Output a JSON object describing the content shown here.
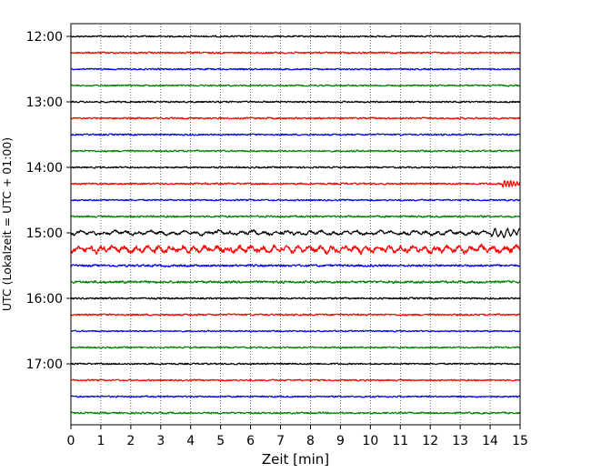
{
  "chart_data": {
    "type": "line",
    "title": "",
    "xlabel": "Zeit  [min]",
    "ylabel": "UTC (Lokalzeit = UTC + 01:00)",
    "xlim": [
      0,
      15
    ],
    "x_ticks": [
      "0",
      "1",
      "2",
      "3",
      "4",
      "5",
      "6",
      "7",
      "8",
      "9",
      "10",
      "11",
      "12",
      "13",
      "14",
      "15"
    ],
    "y_tick_labels": [
      "12:00",
      "13:00",
      "14:00",
      "15:00",
      "16:00",
      "17:00"
    ],
    "grid": "vertical dotted at each minute",
    "legend": "none",
    "trace_interval_minutes": 15,
    "series_colors": [
      "#000000",
      "#ff0000",
      "#0000ff",
      "#008000"
    ],
    "traces": [
      {
        "start": "12:00",
        "color": "#000000",
        "amplitude": 1.0
      },
      {
        "start": "12:15",
        "color": "#ff0000",
        "amplitude": 1.1
      },
      {
        "start": "12:30",
        "color": "#0000ff",
        "amplitude": 1.0
      },
      {
        "start": "12:45",
        "color": "#008000",
        "amplitude": 1.0
      },
      {
        "start": "13:00",
        "color": "#000000",
        "amplitude": 1.0
      },
      {
        "start": "13:15",
        "color": "#ff0000",
        "amplitude": 1.1
      },
      {
        "start": "13:30",
        "color": "#0000ff",
        "amplitude": 1.0
      },
      {
        "start": "13:45",
        "color": "#008000",
        "amplitude": 1.1
      },
      {
        "start": "14:00",
        "color": "#000000",
        "amplitude": 1.0
      },
      {
        "start": "14:15",
        "color": "#ff0000",
        "amplitude": 1.1,
        "event_end": true
      },
      {
        "start": "14:30",
        "color": "#0000ff",
        "amplitude": 1.0
      },
      {
        "start": "14:45",
        "color": "#008000",
        "amplitude": 1.2
      },
      {
        "start": "15:00",
        "color": "#000000",
        "amplitude": 1.6,
        "long_period": true
      },
      {
        "start": "15:15",
        "color": "#ff0000",
        "amplitude": 3.0,
        "long_period": true
      },
      {
        "start": "15:30",
        "color": "#0000ff",
        "amplitude": 1.4
      },
      {
        "start": "15:45",
        "color": "#008000",
        "amplitude": 1.5
      },
      {
        "start": "16:00",
        "color": "#000000",
        "amplitude": 1.1
      },
      {
        "start": "16:15",
        "color": "#ff0000",
        "amplitude": 1.1
      },
      {
        "start": "16:30",
        "color": "#0000ff",
        "amplitude": 0.9
      },
      {
        "start": "16:45",
        "color": "#008000",
        "amplitude": 1.0
      },
      {
        "start": "17:00",
        "color": "#000000",
        "amplitude": 1.0
      },
      {
        "start": "17:15",
        "color": "#ff0000",
        "amplitude": 1.0
      },
      {
        "start": "17:30",
        "color": "#0000ff",
        "amplitude": 1.0
      },
      {
        "start": "17:45",
        "color": "#008000",
        "amplitude": 1.1
      }
    ]
  }
}
